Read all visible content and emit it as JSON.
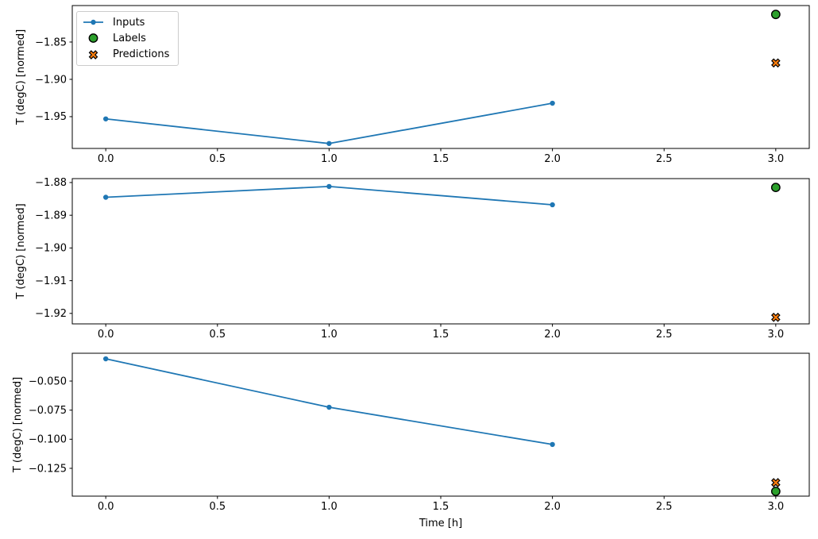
{
  "figure": {
    "background": "#ffffff",
    "xlabel": "Time [h]",
    "ylabel": "T (degC) [normed]"
  },
  "colors": {
    "inputs": "#1f77b4",
    "labels": "#2ca02c",
    "predictions": "#ff7f0e",
    "marker_edge": "#000000",
    "axis": "#000000",
    "legend_border": "#cccccc"
  },
  "legend": {
    "position": "upper left",
    "items": [
      {
        "label": "Inputs",
        "marker": "line-dot",
        "color_key": "inputs"
      },
      {
        "label": "Labels",
        "marker": "circle",
        "color_key": "labels"
      },
      {
        "label": "Predictions",
        "marker": "x",
        "color_key": "predictions"
      }
    ]
  },
  "chart_data": [
    {
      "type": "line",
      "ylabel": "T (degC) [normed]",
      "xlabel": "",
      "xlim": [
        -0.15,
        3.15
      ],
      "ylim": [
        -1.9926,
        -1.8011
      ],
      "grid": false,
      "xticks": [
        {
          "value": 0.0,
          "label": "0.0"
        },
        {
          "value": 0.5,
          "label": "0.5"
        },
        {
          "value": 1.0,
          "label": "1.0"
        },
        {
          "value": 1.5,
          "label": "1.5"
        },
        {
          "value": 2.0,
          "label": "2.0"
        },
        {
          "value": 2.5,
          "label": "2.5"
        },
        {
          "value": 3.0,
          "label": "3.0"
        }
      ],
      "yticks": [
        {
          "value": -1.85,
          "label": "−1.85"
        },
        {
          "value": -1.9,
          "label": "−1.90"
        },
        {
          "value": -1.95,
          "label": "−1.95"
        }
      ],
      "series": [
        {
          "name": "Inputs",
          "style": "line-dot",
          "color_key": "inputs",
          "x": [
            0,
            1,
            2
          ],
          "y": [
            -1.953,
            -1.986,
            -1.932
          ]
        },
        {
          "name": "Labels",
          "style": "circle",
          "color_key": "labels",
          "x": [
            3
          ],
          "y": [
            -1.813
          ]
        },
        {
          "name": "Predictions",
          "style": "x",
          "color_key": "predictions",
          "x": [
            3
          ],
          "y": [
            -1.878
          ]
        }
      ]
    },
    {
      "type": "line",
      "ylabel": "T (degC) [normed]",
      "xlabel": "",
      "xlim": [
        -0.15,
        3.15
      ],
      "ylim": [
        -1.9232,
        -1.8788
      ],
      "grid": false,
      "xticks": [
        {
          "value": 0.0,
          "label": "0.0"
        },
        {
          "value": 0.5,
          "label": "0.5"
        },
        {
          "value": 1.0,
          "label": "1.0"
        },
        {
          "value": 1.5,
          "label": "1.5"
        },
        {
          "value": 2.0,
          "label": "2.0"
        },
        {
          "value": 2.5,
          "label": "2.5"
        },
        {
          "value": 3.0,
          "label": "3.0"
        }
      ],
      "yticks": [
        {
          "value": -1.88,
          "label": "−1.88"
        },
        {
          "value": -1.89,
          "label": "−1.89"
        },
        {
          "value": -1.9,
          "label": "−1.90"
        },
        {
          "value": -1.91,
          "label": "−1.91"
        },
        {
          "value": -1.92,
          "label": "−1.92"
        }
      ],
      "series": [
        {
          "name": "Inputs",
          "style": "line-dot",
          "color_key": "inputs",
          "x": [
            0,
            1,
            2
          ],
          "y": [
            -1.8845,
            -1.8812,
            -1.8868
          ]
        },
        {
          "name": "Labels",
          "style": "circle",
          "color_key": "labels",
          "x": [
            3
          ],
          "y": [
            -1.8815
          ]
        },
        {
          "name": "Predictions",
          "style": "x",
          "color_key": "predictions",
          "x": [
            3
          ],
          "y": [
            -1.9212
          ]
        }
      ]
    },
    {
      "type": "line",
      "ylabel": "T (degC) [normed]",
      "xlabel": "Time [h]",
      "xlim": [
        -0.15,
        3.15
      ],
      "ylim": [
        -0.1489,
        -0.0261
      ],
      "grid": false,
      "xticks": [
        {
          "value": 0.0,
          "label": "0.0"
        },
        {
          "value": 0.5,
          "label": "0.5"
        },
        {
          "value": 1.0,
          "label": "1.0"
        },
        {
          "value": 1.5,
          "label": "1.5"
        },
        {
          "value": 2.0,
          "label": "2.0"
        },
        {
          "value": 2.5,
          "label": "2.5"
        },
        {
          "value": 3.0,
          "label": "3.0"
        }
      ],
      "yticks": [
        {
          "value": -0.05,
          "label": "−0.050"
        },
        {
          "value": -0.075,
          "label": "−0.075"
        },
        {
          "value": -0.1,
          "label": "−0.100"
        },
        {
          "value": -0.125,
          "label": "−0.125"
        }
      ],
      "series": [
        {
          "name": "Inputs",
          "style": "line-dot",
          "color_key": "inputs",
          "x": [
            0,
            1,
            2
          ],
          "y": [
            -0.0309,
            -0.0725,
            -0.1045
          ]
        },
        {
          "name": "Labels",
          "style": "circle",
          "color_key": "labels",
          "x": [
            3
          ],
          "y": [
            -0.1448
          ]
        },
        {
          "name": "Predictions",
          "style": "x",
          "color_key": "predictions",
          "x": [
            3
          ],
          "y": [
            -0.1373
          ]
        }
      ]
    }
  ]
}
